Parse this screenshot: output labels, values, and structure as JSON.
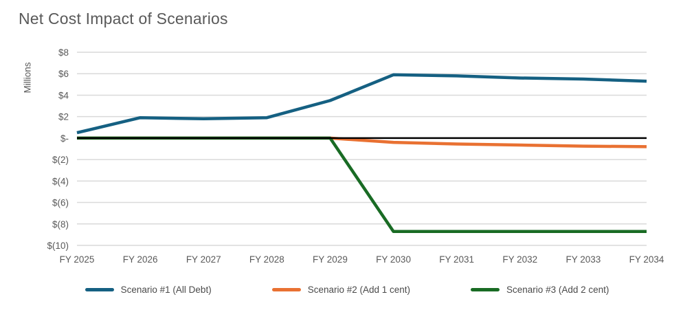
{
  "chart_data": {
    "type": "line",
    "title": "Net Cost Impact of Scenarios",
    "ylabel": "Millions",
    "xlabel": "",
    "categories": [
      "FY 2025",
      "FY 2026",
      "FY 2027",
      "FY 2028",
      "FY 2029",
      "FY 2030",
      "FY 2031",
      "FY 2032",
      "FY 2033",
      "FY 2034"
    ],
    "series": [
      {
        "name": "Scenario #1 (All Debt)",
        "color": "#156082",
        "values": [
          0.5,
          1.9,
          1.8,
          1.9,
          3.5,
          5.9,
          5.8,
          5.6,
          5.5,
          5.3
        ]
      },
      {
        "name": "Scenario #2 (Add 1 cent)",
        "color": "#E97132",
        "values": [
          0,
          0,
          0,
          0,
          0,
          -0.4,
          -0.55,
          -0.65,
          -0.75,
          -0.8
        ]
      },
      {
        "name": "Scenario #3 (Add 2 cent)",
        "color": "#196B24",
        "values": [
          0,
          0,
          0,
          0,
          0,
          -8.7,
          -8.7,
          -8.7,
          -8.7,
          -8.7
        ]
      }
    ],
    "y_tick_values": [
      8,
      6,
      4,
      2,
      0,
      -2,
      -4,
      -6,
      -8,
      -10
    ],
    "y_tick_labels": [
      "$8",
      "$6",
      "$4",
      "$2",
      "$-",
      "$(2)",
      "$(4)",
      "$(6)",
      "$(8)",
      "$(10)"
    ],
    "ylim": [
      -10,
      8
    ],
    "grid": true,
    "zero_line": true,
    "legend_position": "bottom"
  },
  "colors": {
    "gridline": "#D9D9D9",
    "axis_line": "#000000",
    "title_text": "#595959",
    "tick_text": "#595959",
    "legend_text": "#4A4A4A",
    "background": "#FFFFFF"
  }
}
